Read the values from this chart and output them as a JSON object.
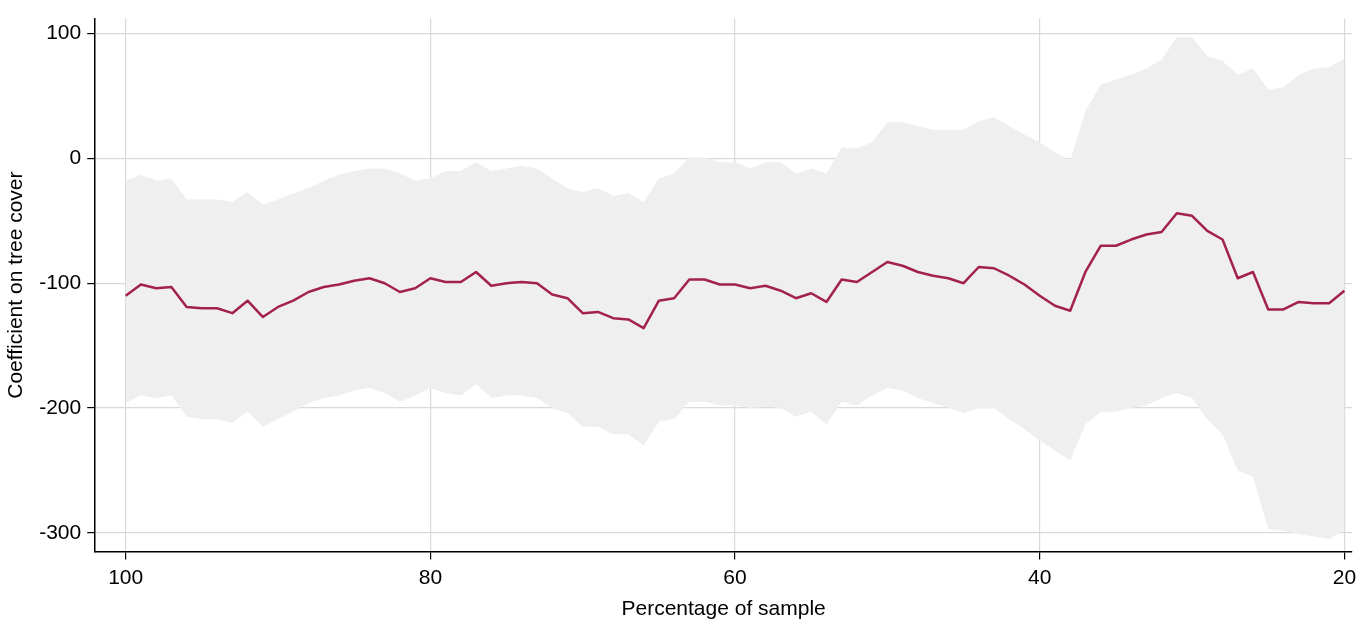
{
  "chart_data": {
    "type": "line",
    "xlabel": "Percentage of sample",
    "ylabel": "Coefficient on tree cover",
    "xlim": [
      102,
      19.5
    ],
    "xticks": [
      100,
      80,
      60,
      40,
      20
    ],
    "ylim": [
      -315,
      112
    ],
    "yticks": [
      100,
      0,
      -100,
      -200,
      -300
    ],
    "grid": true,
    "legend": false,
    "marker": "none",
    "line_style": "solid",
    "x": [
      100,
      99,
      98,
      97,
      96,
      95,
      94,
      93,
      92,
      91,
      90,
      89,
      88,
      87,
      86,
      85,
      84,
      83,
      82,
      81,
      80,
      79,
      78,
      77,
      76,
      75,
      74,
      73,
      72,
      71,
      70,
      69,
      68,
      67,
      66,
      65,
      64,
      63,
      62,
      61,
      60,
      59,
      58,
      57,
      56,
      55,
      54,
      53,
      52,
      51,
      50,
      49,
      48,
      47,
      46,
      45,
      44,
      43,
      42,
      41,
      40,
      39,
      38,
      37,
      36,
      35,
      34,
      33,
      32,
      31,
      30,
      29,
      28,
      27,
      26,
      25,
      24,
      23,
      22,
      21,
      20
    ],
    "series": [
      {
        "color": "#a3224a",
        "values": [
          -110,
          -101,
          -104,
          -103,
          -119,
          -120,
          -120,
          -124,
          -114,
          -127,
          -119,
          -114,
          -107,
          -103,
          -101,
          -98,
          -96,
          -100,
          -107,
          -104,
          -96,
          -99,
          -99,
          -91,
          -102,
          -100,
          -99,
          -100,
          -109,
          -112,
          -124,
          -123,
          -128,
          -129,
          -136,
          -114,
          -112,
          -97,
          -97,
          -101,
          -101,
          -104,
          -102,
          -106,
          -112,
          -108,
          -115,
          -97,
          -99,
          -91,
          -83,
          -86,
          -91,
          -94,
          -96,
          -100,
          -87,
          -88,
          -94,
          -101,
          -110,
          -118,
          -122,
          -91,
          -70,
          -70,
          -65,
          -61,
          -59,
          -44,
          -46,
          -58,
          -65,
          -96,
          -91,
          -121,
          -121,
          -115,
          -116,
          -116,
          -106
        ],
        "lower": [
          -196,
          -190,
          -192,
          -190,
          -207,
          -209,
          -209,
          -212,
          -203,
          -215,
          -209,
          -203,
          -196,
          -192,
          -190,
          -186,
          -184,
          -188,
          -195,
          -190,
          -184,
          -188,
          -190,
          -181,
          -192,
          -190,
          -190,
          -192,
          -200,
          -204,
          -215,
          -215,
          -221,
          -221,
          -230,
          -211,
          -209,
          -195,
          -195,
          -198,
          -198,
          -200,
          -199,
          -200,
          -207,
          -203,
          -213,
          -195,
          -198,
          -190,
          -184,
          -186,
          -192,
          -196,
          -200,
          -204,
          -200,
          -200,
          -209,
          -217,
          -226,
          -234,
          -242,
          -213,
          -203,
          -203,
          -200,
          -198,
          -192,
          -188,
          -192,
          -209,
          -221,
          -250,
          -255,
          -297,
          -298,
          -301,
          -303,
          -305,
          -298
        ],
        "upper": [
          -18,
          -13,
          -18,
          -16,
          -33,
          -33,
          -33,
          -35,
          -27,
          -37,
          -33,
          -28,
          -24,
          -18,
          -13,
          -10,
          -8,
          -8,
          -12,
          -18,
          -16,
          -10,
          -10,
          -3,
          -10,
          -8,
          -6,
          -8,
          -16,
          -24,
          -27,
          -24,
          -30,
          -28,
          -35,
          -16,
          -12,
          1,
          1,
          -3,
          -3,
          -8,
          -3,
          -3,
          -12,
          -8,
          -12,
          9,
          8,
          13,
          29,
          29,
          26,
          23,
          23,
          23,
          30,
          33,
          26,
          19,
          13,
          5,
          -2,
          38,
          59,
          63,
          67,
          72,
          79,
          97,
          97,
          82,
          78,
          67,
          72,
          55,
          57,
          67,
          72,
          73,
          80
        ]
      }
    ]
  }
}
